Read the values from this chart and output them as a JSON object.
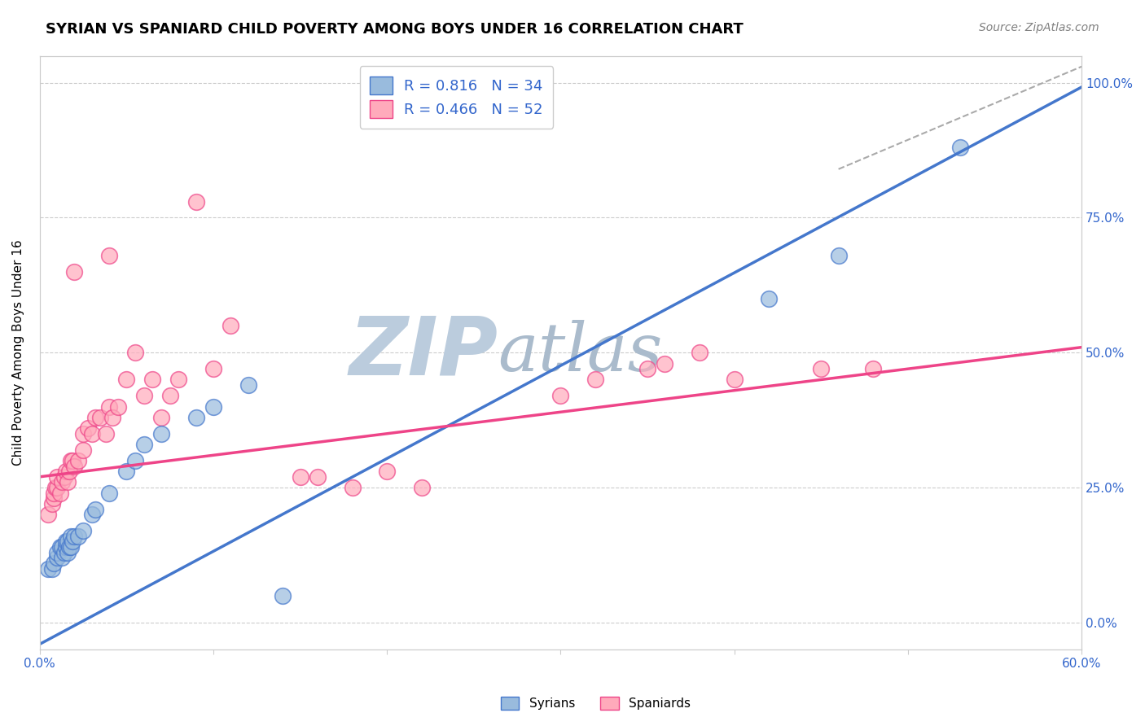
{
  "title": "SYRIAN VS SPANIARD CHILD POVERTY AMONG BOYS UNDER 16 CORRELATION CHART",
  "source": "Source: ZipAtlas.com",
  "ylabel": "Child Poverty Among Boys Under 16",
  "ylabel_ticks": [
    0.0,
    0.25,
    0.5,
    0.75,
    1.0
  ],
  "ylabel_labels": [
    "0.0%",
    "25.0%",
    "50.0%",
    "75.0%",
    "100.0%"
  ],
  "xlim": [
    0.0,
    0.6
  ],
  "ylim": [
    -0.05,
    1.05
  ],
  "blue_color": "#99BBDD",
  "pink_color": "#FFAABB",
  "blue_line_color": "#4477CC",
  "pink_line_color": "#EE4488",
  "R_blue": 0.816,
  "N_blue": 34,
  "R_pink": 0.466,
  "N_pink": 52,
  "blue_intercept": -0.04,
  "blue_slope": 1.72,
  "pink_intercept": 0.27,
  "pink_slope": 0.4,
  "syrians_x": [
    0.005,
    0.007,
    0.008,
    0.01,
    0.01,
    0.012,
    0.013,
    0.013,
    0.014,
    0.015,
    0.015,
    0.016,
    0.016,
    0.017,
    0.018,
    0.018,
    0.019,
    0.02,
    0.022,
    0.025,
    0.03,
    0.032,
    0.04,
    0.05,
    0.055,
    0.06,
    0.07,
    0.09,
    0.1,
    0.12,
    0.14,
    0.42,
    0.46,
    0.53
  ],
  "syrians_y": [
    0.1,
    0.1,
    0.11,
    0.12,
    0.13,
    0.14,
    0.12,
    0.14,
    0.13,
    0.14,
    0.15,
    0.13,
    0.15,
    0.14,
    0.14,
    0.16,
    0.15,
    0.16,
    0.16,
    0.17,
    0.2,
    0.21,
    0.24,
    0.28,
    0.3,
    0.33,
    0.35,
    0.38,
    0.4,
    0.44,
    0.05,
    0.6,
    0.68,
    0.88
  ],
  "spaniards_x": [
    0.005,
    0.007,
    0.008,
    0.008,
    0.009,
    0.01,
    0.01,
    0.012,
    0.013,
    0.014,
    0.015,
    0.016,
    0.017,
    0.018,
    0.019,
    0.02,
    0.02,
    0.022,
    0.025,
    0.025,
    0.028,
    0.03,
    0.032,
    0.035,
    0.038,
    0.04,
    0.04,
    0.042,
    0.045,
    0.05,
    0.055,
    0.06,
    0.065,
    0.07,
    0.075,
    0.08,
    0.09,
    0.1,
    0.11,
    0.15,
    0.16,
    0.18,
    0.2,
    0.22,
    0.3,
    0.32,
    0.35,
    0.36,
    0.38,
    0.4,
    0.45,
    0.48
  ],
  "spaniards_y": [
    0.2,
    0.22,
    0.23,
    0.24,
    0.25,
    0.25,
    0.27,
    0.24,
    0.26,
    0.27,
    0.28,
    0.26,
    0.28,
    0.3,
    0.3,
    0.29,
    0.65,
    0.3,
    0.32,
    0.35,
    0.36,
    0.35,
    0.38,
    0.38,
    0.35,
    0.4,
    0.68,
    0.38,
    0.4,
    0.45,
    0.5,
    0.42,
    0.45,
    0.38,
    0.42,
    0.45,
    0.78,
    0.47,
    0.55,
    0.27,
    0.27,
    0.25,
    0.28,
    0.25,
    0.42,
    0.45,
    0.47,
    0.48,
    0.5,
    0.45,
    0.47,
    0.47
  ],
  "watermark_zip": "ZIP",
  "watermark_atlas": "atlas",
  "watermark_color_zip": "#BBCCDD",
  "watermark_color_atlas": "#AABBCC",
  "grid_color": "#CCCCCC",
  "title_fontsize": 13,
  "label_fontsize": 11,
  "tick_fontsize": 11,
  "legend_fontsize": 13,
  "source_fontsize": 10,
  "background_color": "#FFFFFF"
}
